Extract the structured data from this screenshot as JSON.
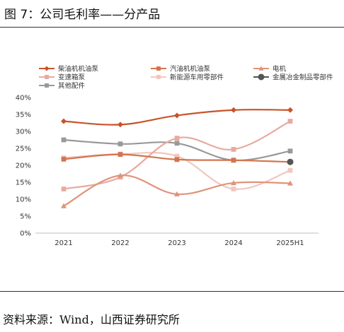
{
  "header": {
    "title": "图 7：公司毛利率——分产品"
  },
  "footer": {
    "source": "资料来源：Wind，山西证券研究所"
  },
  "chart_data": {
    "type": "line",
    "categories": [
      "2021",
      "2022",
      "2023",
      "2024",
      "2025H1"
    ],
    "ylim": [
      0,
      40
    ],
    "yticks": [
      "0%",
      "5%",
      "10%",
      "15%",
      "20%",
      "25%",
      "30%",
      "35%",
      "40%"
    ],
    "legend_position": "top",
    "grid": false,
    "series": [
      {
        "name": "柴油机机油泵",
        "color": "#c8532a",
        "marker": "diamond",
        "values": [
          33.0,
          32.0,
          34.7,
          36.3,
          36.3
        ]
      },
      {
        "name": "汽油机机油泵",
        "color": "#d4744f",
        "marker": "square",
        "values": [
          21.8,
          23.2,
          21.7,
          21.5,
          21.0
        ]
      },
      {
        "name": "电机",
        "color": "#e0937a",
        "marker": "triangle",
        "values": [
          8.0,
          17.0,
          11.5,
          14.8,
          14.7
        ]
      },
      {
        "name": "变速箱泵",
        "color": "#e8aaa0",
        "marker": "square",
        "values": [
          13.0,
          16.5,
          28.0,
          24.7,
          33.0
        ]
      },
      {
        "name": "新能源车用零部件",
        "color": "#f0c8c0",
        "marker": "square",
        "values": [
          22.2,
          23.3,
          22.7,
          13.0,
          18.5
        ]
      },
      {
        "name": "金属冶金制品零部件",
        "color": "#555555",
        "marker": "circle",
        "values": [
          null,
          null,
          null,
          null,
          21.0
        ]
      },
      {
        "name": "其他配件",
        "color": "#999999",
        "marker": "square",
        "values": [
          27.5,
          26.3,
          26.5,
          21.5,
          24.2
        ]
      }
    ]
  }
}
